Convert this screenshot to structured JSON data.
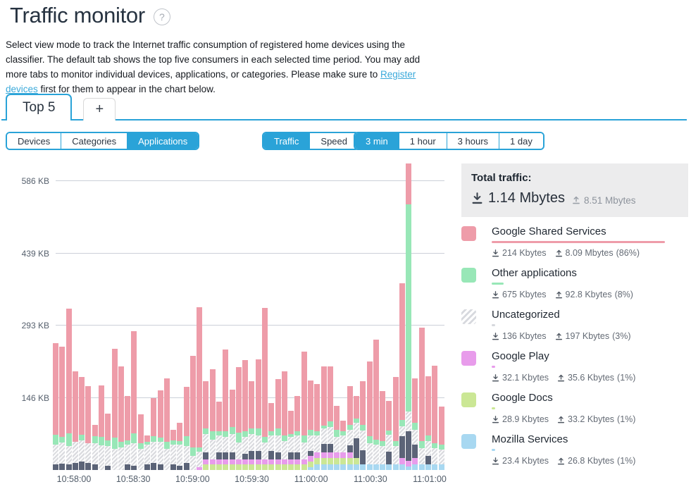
{
  "page": {
    "title": "Traffic monitor",
    "help_label": "?"
  },
  "intro": {
    "text_before": "Select view mode to track the Internet traffic consumption of registered home devices using the classifier. The default tab shows the top five consumers in each selected time period. You may add more tabs to monitor individual devices, applications, or categories. Please make sure to ",
    "link_label": "Register devices",
    "text_after": " first for them to appear in the chart below."
  },
  "tabs": [
    {
      "label": "Top 5",
      "active": true
    },
    {
      "label": "+",
      "active": false
    }
  ],
  "controls": {
    "view_mode": {
      "options": [
        "Devices",
        "Categories",
        "Applications"
      ],
      "selected": "Applications"
    },
    "metric": {
      "options": [
        "Traffic",
        "Speed"
      ],
      "selected": "Traffic"
    },
    "range": {
      "options": [
        "3 min",
        "1 hour",
        "3 hours",
        "1 day"
      ],
      "selected": "3 min"
    }
  },
  "summary": {
    "title": "Total traffic:",
    "download": "1.14 Mbytes",
    "upload": "8.51 Mbytes"
  },
  "legend": [
    {
      "name": "Google Shared Services",
      "color": "#ee9ca9",
      "download": "214 Kbytes",
      "upload": "8.09 Mbytes",
      "share": "(86%)"
    },
    {
      "name": "Other applications",
      "color": "#98e7b7",
      "download": "675 Kbytes",
      "upload": "92.8 Kbytes",
      "share": "(8%)"
    },
    {
      "name": "Uncategorized",
      "color": "hatch",
      "download": "136 Kbytes",
      "upload": "197 Kbytes",
      "share": "(3%)"
    },
    {
      "name": "Google Play",
      "color": "#e89ceb",
      "download": "32.1 Kbytes",
      "upload": "35.6 Kbytes",
      "share": "(1%)"
    },
    {
      "name": "Google Docs",
      "color": "#cbe795",
      "download": "28.9 Kbytes",
      "upload": "33.2 Kbytes",
      "share": "(1%)"
    },
    {
      "name": "Mozilla Services",
      "color": "#a8d8f1",
      "download": "23.4 Kbytes",
      "upload": "26.8 Kbytes",
      "share": "(1%)"
    }
  ],
  "chart_data": {
    "type": "bar",
    "stacked": true,
    "unit": "KB",
    "interval_per_bar": "3 s",
    "x_labels": [
      "10:58:00",
      "10:58:30",
      "10:59:00",
      "10:59:30",
      "11:00:00",
      "11:00:30",
      "11:01:00"
    ],
    "y_ticks": [
      {
        "label": "586 KB",
        "kb": 586
      },
      {
        "label": "439 KB",
        "kb": 439
      },
      {
        "label": "293 KB",
        "kb": 293
      },
      {
        "label": "146 KB",
        "kb": 146
      }
    ],
    "ylim": [
      0,
      622
    ],
    "grid": true,
    "legend_position": "right",
    "series": [
      {
        "name": "Mozilla Services",
        "color": "#a8d8f1"
      },
      {
        "name": "Google Docs",
        "color": "#cbe795"
      },
      {
        "name": "Google Play",
        "color": "#e89ceb"
      },
      {
        "name": "",
        "color": "#5b6377"
      },
      {
        "name": "Uncategorized",
        "color": "hatch"
      },
      {
        "name": "Other applications",
        "color": "#98e7b7"
      },
      {
        "name": "Google Shared Services",
        "color": "#ee9ca9"
      }
    ],
    "bars_kb": [
      [
        0,
        0,
        0,
        11,
        40,
        20,
        186
      ],
      [
        0,
        0,
        0,
        13,
        43,
        11,
        183
      ],
      [
        0,
        0,
        0,
        11,
        37,
        26,
        253
      ],
      [
        0,
        0,
        0,
        14,
        43,
        0,
        143
      ],
      [
        0,
        0,
        0,
        17,
        43,
        11,
        118
      ],
      [
        0,
        0,
        0,
        14,
        40,
        0,
        116
      ],
      [
        0,
        0,
        0,
        11,
        43,
        14,
        24
      ],
      [
        0,
        0,
        0,
        0,
        50,
        17,
        105
      ],
      [
        0,
        0,
        0,
        9,
        40,
        11,
        54
      ],
      [
        0,
        0,
        0,
        0,
        43,
        23,
        180
      ],
      [
        0,
        0,
        0,
        0,
        46,
        11,
        153
      ],
      [
        0,
        0,
        0,
        11,
        40,
        9,
        90
      ],
      [
        0,
        0,
        0,
        9,
        46,
        20,
        207
      ],
      [
        0,
        0,
        0,
        0,
        43,
        11,
        59
      ],
      [
        0,
        0,
        0,
        11,
        40,
        6,
        13
      ],
      [
        0,
        0,
        0,
        14,
        43,
        11,
        78
      ],
      [
        0,
        0,
        0,
        11,
        46,
        9,
        96
      ],
      [
        0,
        0,
        0,
        0,
        43,
        14,
        129
      ],
      [
        0,
        0,
        0,
        11,
        40,
        9,
        22
      ],
      [
        0,
        0,
        0,
        9,
        43,
        6,
        38
      ],
      [
        0,
        0,
        0,
        14,
        34,
        20,
        100
      ],
      [
        0,
        0,
        0,
        0,
        29,
        17,
        186
      ],
      [
        0,
        0,
        6,
        0,
        31,
        9,
        284
      ],
      [
        0,
        11,
        11,
        14,
        37,
        11,
        96
      ],
      [
        0,
        11,
        11,
        0,
        40,
        17,
        126
      ],
      [
        0,
        11,
        11,
        14,
        34,
        9,
        60
      ],
      [
        0,
        11,
        11,
        14,
        31,
        11,
        166
      ],
      [
        0,
        11,
        11,
        14,
        37,
        14,
        76
      ],
      [
        0,
        11,
        11,
        0,
        34,
        20,
        132
      ],
      [
        0,
        11,
        11,
        11,
        34,
        11,
        145
      ],
      [
        0,
        11,
        11,
        17,
        34,
        11,
        96
      ],
      [
        0,
        11,
        11,
        17,
        31,
        14,
        140
      ],
      [
        0,
        11,
        11,
        0,
        34,
        11,
        262
      ],
      [
        0,
        11,
        11,
        17,
        31,
        9,
        57
      ],
      [
        0,
        11,
        11,
        14,
        34,
        14,
        100
      ],
      [
        0,
        11,
        11,
        0,
        37,
        11,
        130
      ],
      [
        0,
        11,
        11,
        14,
        31,
        6,
        47
      ],
      [
        0,
        11,
        11,
        14,
        34,
        9,
        71
      ],
      [
        0,
        11,
        11,
        0,
        34,
        14,
        170
      ],
      [
        6,
        11,
        11,
        11,
        31,
        11,
        100
      ],
      [
        11,
        14,
        11,
        0,
        34,
        9,
        95
      ],
      [
        11,
        14,
        11,
        17,
        31,
        6,
        120
      ],
      [
        11,
        14,
        11,
        17,
        34,
        11,
        112
      ],
      [
        11,
        14,
        11,
        0,
        31,
        14,
        49
      ],
      [
        11,
        14,
        11,
        0,
        34,
        9,
        21
      ],
      [
        11,
        14,
        11,
        14,
        31,
        11,
        78
      ],
      [
        11,
        14,
        0,
        40,
        31,
        9,
        45
      ],
      [
        11,
        0,
        0,
        29,
        40,
        11,
        89
      ],
      [
        11,
        0,
        0,
        0,
        43,
        14,
        152
      ],
      [
        11,
        0,
        0,
        0,
        40,
        11,
        203
      ],
      [
        11,
        0,
        0,
        0,
        37,
        11,
        101
      ],
      [
        11,
        0,
        0,
        26,
        34,
        9,
        60
      ],
      [
        11,
        0,
        0,
        0,
        37,
        11,
        129
      ],
      [
        11,
        0,
        14,
        43,
        20,
        14,
        276
      ],
      [
        7,
        0,
        11,
        60,
        40,
        420,
        84
      ],
      [
        11,
        0,
        14,
        26,
        31,
        14,
        90
      ],
      [
        11,
        0,
        0,
        0,
        34,
        14,
        230
      ],
      [
        11,
        0,
        0,
        17,
        31,
        11,
        120
      ],
      [
        11,
        0,
        0,
        0,
        34,
        9,
        157
      ],
      [
        11,
        0,
        0,
        0,
        31,
        9,
        77
      ]
    ]
  }
}
